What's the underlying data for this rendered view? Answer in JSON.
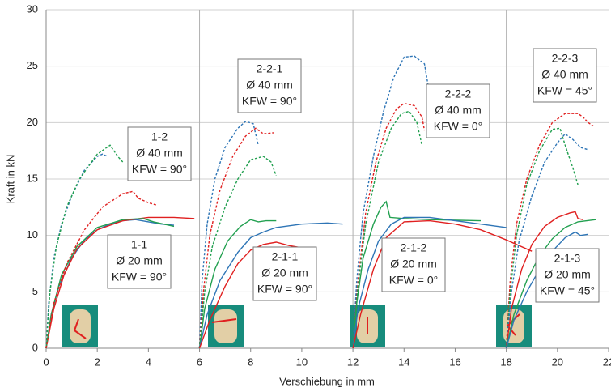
{
  "chart_data": {
    "type": "line",
    "x_label": "Verschiebung in mm",
    "y_label": "Kraft in kN",
    "xlim": [
      0,
      22
    ],
    "xticks": [
      0,
      2,
      4,
      6,
      8,
      10,
      12,
      14,
      16,
      18,
      20,
      22
    ],
    "ylim": [
      0,
      30
    ],
    "yticks": [
      0,
      5,
      10,
      15,
      20,
      25,
      30
    ],
    "grid": true,
    "series": [
      {
        "color": "#2e75b6",
        "dash": false,
        "x": [
          0,
          0.2,
          0.5,
          1,
          1.5,
          2,
          2.5,
          3,
          3.5,
          4,
          4.5,
          5
        ],
        "values": [
          0,
          3,
          5.5,
          8,
          9.6,
          10.5,
          11,
          11.3,
          11.4,
          11.2,
          11,
          10.9
        ]
      },
      {
        "color": "#e02020",
        "dash": false,
        "x": [
          0,
          0.3,
          0.7,
          1.2,
          2,
          3,
          4,
          5,
          5.8
        ],
        "values": [
          0,
          3.5,
          6.5,
          8.8,
          10.5,
          11.3,
          11.6,
          11.6,
          11.5
        ]
      },
      {
        "color": "#22a050",
        "dash": false,
        "x": [
          0,
          0.2,
          0.6,
          1.2,
          2,
          3,
          3.8,
          4.2,
          4.6,
          5
        ],
        "values": [
          0,
          3,
          6.5,
          9,
          10.7,
          11.4,
          11.5,
          11.2,
          11,
          10.8
        ]
      },
      {
        "color": "#2e75b6",
        "dash": true,
        "x": [
          0,
          0.1,
          0.3,
          0.6,
          1,
          1.5,
          2,
          2.2,
          2.4
        ],
        "values": [
          0,
          4,
          8,
          11,
          13.5,
          15.8,
          17,
          17.2,
          17
        ]
      },
      {
        "color": "#22a050",
        "dash": true,
        "x": [
          0,
          0.15,
          0.4,
          0.8,
          1.3,
          2,
          2.5,
          2.8,
          3
        ],
        "values": [
          0,
          5,
          9,
          12.5,
          15,
          17.2,
          18,
          17,
          16.5
        ]
      },
      {
        "color": "#e02020",
        "dash": true,
        "x": [
          0,
          0.3,
          0.8,
          1.5,
          2.2,
          3,
          3.4,
          3.6,
          4,
          4.3
        ],
        "values": [
          0,
          4,
          7.5,
          10.5,
          12.5,
          13.7,
          13.9,
          13.3,
          12.9,
          12.7
        ]
      },
      {
        "color": "#2e75b6",
        "dash": true,
        "x": [
          6,
          6.1,
          6.3,
          6.6,
          7,
          7.5,
          7.8,
          8.1,
          8.3
        ],
        "values": [
          0,
          6,
          11,
          15,
          17.8,
          19.5,
          20.1,
          19.9,
          18
        ]
      },
      {
        "color": "#e02020",
        "dash": true,
        "x": [
          6,
          6.15,
          6.4,
          6.8,
          7.3,
          7.8,
          8.2,
          8.5,
          8.9
        ],
        "values": [
          0,
          5,
          10,
          14,
          17,
          18.8,
          19.5,
          19,
          19.1
        ]
      },
      {
        "color": "#22a050",
        "dash": true,
        "x": [
          6,
          6.2,
          6.5,
          7,
          7.5,
          8,
          8.5,
          8.8,
          9
        ],
        "values": [
          0,
          5,
          9,
          12.5,
          15,
          16.7,
          17,
          16.5,
          15.3
        ]
      },
      {
        "color": "#22a050",
        "dash": false,
        "x": [
          6,
          6.2,
          6.6,
          7.1,
          7.6,
          8,
          8.3,
          8.6,
          9
        ],
        "values": [
          0,
          3.5,
          7,
          9.5,
          10.8,
          11.4,
          11.2,
          11.3,
          11.3
        ]
      },
      {
        "color": "#2e75b6",
        "dash": false,
        "x": [
          6,
          6.3,
          6.8,
          7.5,
          8,
          8.5,
          9,
          10,
          11,
          11.6
        ],
        "values": [
          0,
          3,
          6,
          8.5,
          9.8,
          10.3,
          10.7,
          11,
          11.1,
          11
        ]
      },
      {
        "color": "#e02020",
        "dash": false,
        "x": [
          6,
          6.4,
          7,
          7.5,
          8,
          8.5,
          9,
          9.5,
          10
        ],
        "values": [
          0,
          2.5,
          5.5,
          7.5,
          8.7,
          9.2,
          9.4,
          9.1,
          8.9
        ]
      },
      {
        "color": "#2e75b6",
        "dash": true,
        "x": [
          12,
          12.15,
          12.4,
          12.8,
          13.2,
          13.6,
          14,
          14.4,
          14.8,
          15
        ],
        "values": [
          0,
          6,
          12,
          17,
          21,
          24,
          25.8,
          25.9,
          25.2,
          22.5
        ]
      },
      {
        "color": "#e02020",
        "dash": true,
        "x": [
          12,
          12.2,
          12.5,
          12.9,
          13.3,
          13.7,
          14,
          14.4,
          14.7,
          14.8
        ],
        "values": [
          0,
          6,
          12,
          16.5,
          19.5,
          21.2,
          21.7,
          21.5,
          20.5,
          19.3
        ]
      },
      {
        "color": "#22a050",
        "dash": true,
        "x": [
          12,
          12.2,
          12.5,
          13,
          13.5,
          13.9,
          14.2,
          14.5,
          14.7
        ],
        "values": [
          0,
          5.5,
          11,
          16.5,
          19.5,
          20.8,
          21,
          20,
          18
        ]
      },
      {
        "color": "#22a050",
        "dash": false,
        "x": [
          12,
          12.15,
          12.4,
          12.8,
          13.1,
          13.3,
          13.45,
          14,
          15,
          17
        ],
        "values": [
          0,
          4,
          8,
          11,
          12.5,
          13,
          11.6,
          11.5,
          11.4,
          11.3
        ]
      },
      {
        "color": "#2e75b6",
        "dash": false,
        "x": [
          12,
          12.2,
          12.6,
          13,
          13.5,
          14,
          15,
          16,
          17,
          18
        ],
        "values": [
          0,
          3.5,
          7,
          9.5,
          11,
          11.6,
          11.6,
          11.3,
          11,
          10.7
        ]
      },
      {
        "color": "#e02020",
        "dash": false,
        "x": [
          12,
          12.3,
          12.8,
          13.3,
          14,
          15,
          16,
          17,
          18,
          19
        ],
        "values": [
          0,
          3,
          7,
          9.8,
          11.2,
          11.3,
          11,
          10.5,
          9.6,
          8.6
        ]
      },
      {
        "color": "#e02020",
        "dash": true,
        "x": [
          18,
          18.15,
          18.4,
          18.8,
          19.3,
          19.8,
          20.3,
          20.8,
          21,
          21.2,
          21.4
        ],
        "values": [
          0,
          6,
          11,
          15,
          18,
          20,
          20.8,
          20.8,
          20.5,
          20,
          19.7
        ]
      },
      {
        "color": "#22a050",
        "dash": true,
        "x": [
          18,
          18.15,
          18.4,
          18.8,
          19.3,
          19.8,
          20.1,
          20.3,
          20.6,
          20.8
        ],
        "values": [
          0,
          5,
          10,
          14.5,
          17.5,
          19.4,
          19.5,
          18,
          16,
          14.5
        ]
      },
      {
        "color": "#2e75b6",
        "dash": true,
        "x": [
          18,
          18.2,
          18.5,
          19,
          19.5,
          20,
          20.3,
          20.6,
          20.9,
          21.2
        ],
        "values": [
          0,
          5,
          9.5,
          13.5,
          16.5,
          18.2,
          19,
          18.5,
          17.8,
          17.6
        ]
      },
      {
        "color": "#e02020",
        "dash": false,
        "x": [
          18,
          18.2,
          18.6,
          19,
          19.5,
          20,
          20.5,
          20.7,
          20.8,
          21
        ],
        "values": [
          0,
          3.5,
          7,
          9.2,
          10.8,
          11.6,
          12,
          12.1,
          11.5,
          11.4
        ]
      },
      {
        "color": "#22a050",
        "dash": false,
        "x": [
          18,
          18.3,
          18.8,
          19.3,
          19.8,
          20.3,
          20.8,
          21.5
        ],
        "values": [
          0,
          3,
          6,
          8.2,
          9.7,
          10.7,
          11.2,
          11.4
        ]
      },
      {
        "color": "#2e75b6",
        "dash": false,
        "x": [
          18,
          18.3,
          18.8,
          19.3,
          19.8,
          20.3,
          20.7,
          20.9,
          21.2
        ],
        "values": [
          0,
          2.5,
          5,
          7,
          8.6,
          9.8,
          10.3,
          10,
          10.1
        ]
      }
    ],
    "annotations": [
      {
        "lines": [
          "1-2",
          "Ø 40 mm",
          "KFW = 90°"
        ]
      },
      {
        "lines": [
          "1-1",
          "Ø 20 mm",
          "KFW = 90°"
        ]
      },
      {
        "lines": [
          "2-2-1",
          "Ø 40 mm",
          "KFW = 90°"
        ]
      },
      {
        "lines": [
          "2-1-1",
          "Ø 20 mm",
          "KFW = 90°"
        ]
      },
      {
        "lines": [
          "2-2-2",
          "Ø 40 mm",
          "KFW = 0°"
        ]
      },
      {
        "lines": [
          "2-1-2",
          "Ø 20 mm",
          "KFW = 0°"
        ]
      },
      {
        "lines": [
          "2-2-3",
          "Ø 40 mm",
          "KFW = 45°"
        ]
      },
      {
        "lines": [
          "2-1-3",
          "Ø 20 mm",
          "KFW = 45°"
        ]
      }
    ]
  }
}
